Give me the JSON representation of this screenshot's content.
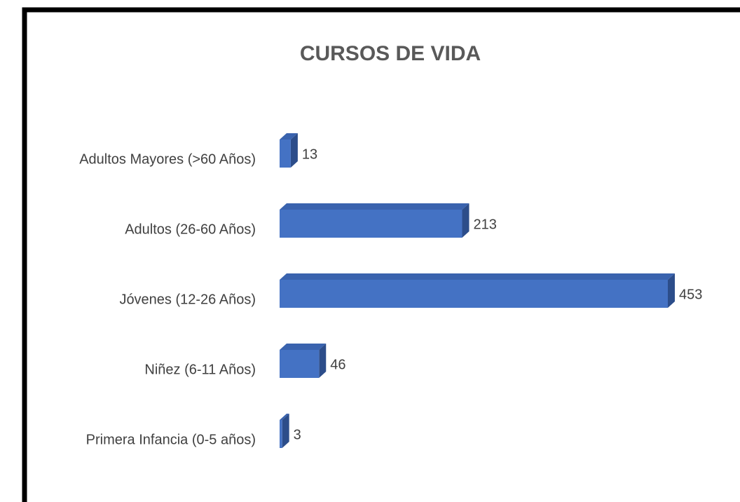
{
  "chart_data": {
    "type": "bar3d_horizontal",
    "title": "CURSOS DE VIDA",
    "categories": [
      "Adultos Mayores (>60 Años)",
      "Adultos (26-60 Años)",
      "Jóvenes (12-26 Años)",
      "Niñez (6-11 Años)",
      "Primera Infancia  (0-5 años)"
    ],
    "values": [
      13,
      213,
      453,
      46,
      3
    ],
    "color": "#4472c4"
  }
}
